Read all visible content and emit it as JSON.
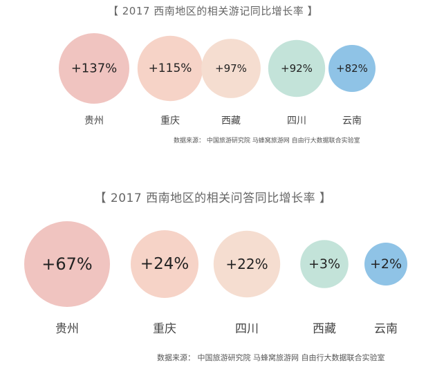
{
  "chart_data": [
    {
      "type": "bubble",
      "title": "【 2017 西南地区的相关游记同比增长率 】",
      "categories": [
        "贵州",
        "重庆",
        "西藏",
        "四川",
        "云南"
      ],
      "values": [
        137,
        115,
        97,
        92,
        82
      ],
      "labels": [
        "+137%",
        "+115%",
        "+97%",
        "+92%",
        "+82%"
      ],
      "unit": "%",
      "colors": [
        "#f0c4c0",
        "#f6d3c7",
        "#f5ddd0",
        "#c3e3d9",
        "#8fc3e6"
      ],
      "source": "数据来源：  中国旅游研究院 马蜂窝旅游网 自由行大数据联合实验室"
    },
    {
      "type": "bubble",
      "title": "【 2017 西南地区的相关问答同比增长率 】",
      "categories": [
        "贵州",
        "重庆",
        "四川",
        "西藏",
        "云南"
      ],
      "values": [
        67,
        24,
        22,
        3,
        2
      ],
      "labels": [
        "+67%",
        "+24%",
        "+22%",
        "+3%",
        "+2%"
      ],
      "unit": "%",
      "colors": [
        "#f0c4c0",
        "#f6d3c7",
        "#f5ddd0",
        "#c3e3d9",
        "#8fc3e6"
      ],
      "source": "数据来源：  中国旅游研究院 马蜂窝旅游网 自由行大数据联合实验室"
    }
  ]
}
